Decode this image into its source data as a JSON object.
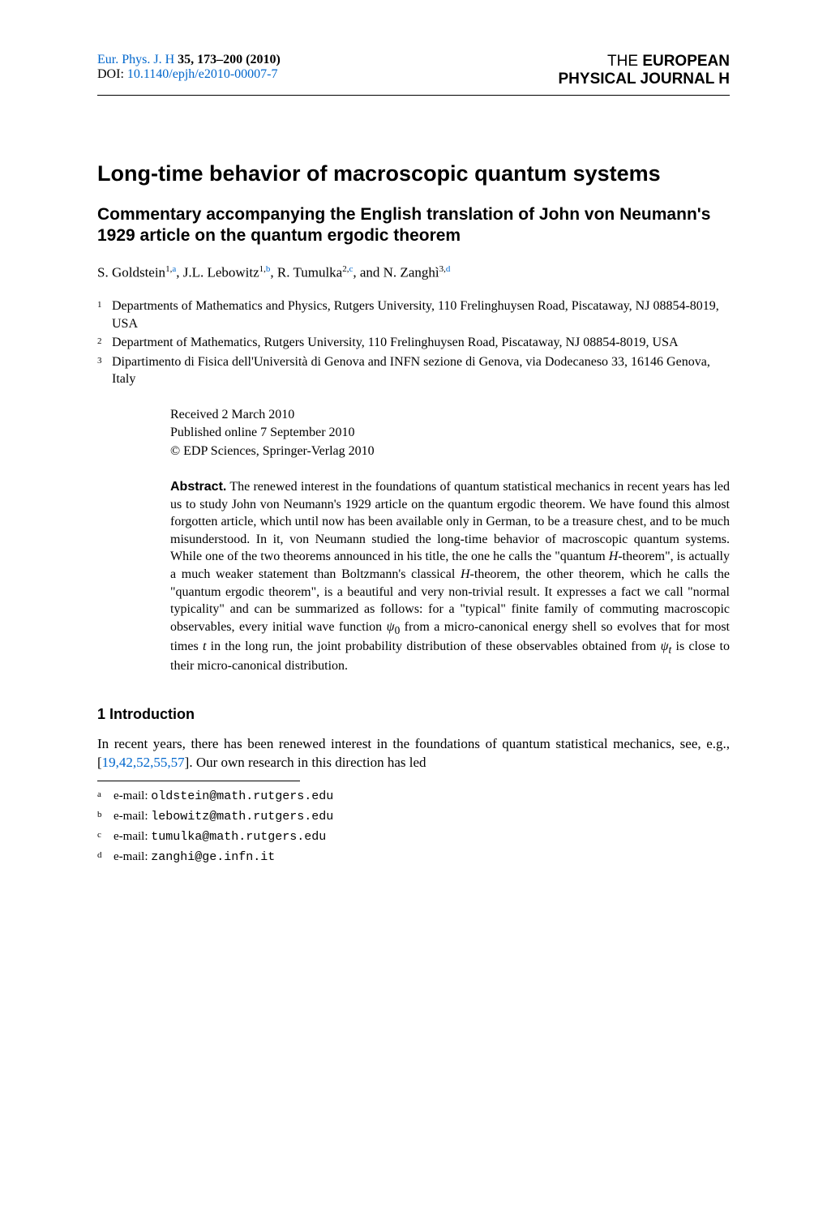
{
  "header": {
    "journal_link_text": "Eur. Phys. J. H",
    "volume_pages": "35, 173–200 (2010)",
    "doi_prefix": "DOI: ",
    "doi_link_text": "10.1140/epjh/e2010-00007-7",
    "journal_name_line1_plain": "THE ",
    "journal_name_line1_bold": "EUROPEAN",
    "journal_name_line2": "PHYSICAL JOURNAL H"
  },
  "title": "Long-time behavior of macroscopic quantum systems",
  "subtitle": "Commentary accompanying the English translation of John von Neumann's 1929 article on the quantum ergodic theorem",
  "authors": {
    "a1_name": "S. Goldstein",
    "a1_aff": "1",
    "a1_note": "a",
    "sep1": ", ",
    "a2_name": "J.L. Lebowitz",
    "a2_aff": "1",
    "a2_note": "b",
    "sep2": ", ",
    "a3_name": "R. Tumulka",
    "a3_aff": "2",
    "a3_note": "c",
    "sep3": ", and ",
    "a4_name": "N. Zanghì",
    "a4_aff": "3",
    "a4_note": "d"
  },
  "affiliations": [
    {
      "num": "1",
      "text": "Departments of Mathematics and Physics, Rutgers University, 110 Frelinghuysen Road, Piscataway, NJ 08854-8019, USA"
    },
    {
      "num": "2",
      "text": "Department of Mathematics, Rutgers University, 110 Frelinghuysen Road, Piscataway, NJ 08854-8019, USA"
    },
    {
      "num": "3",
      "text": "Dipartimento di Fisica dell'Università di Genova and INFN sezione di Genova, via Dodecaneso 33, 16146 Genova, Italy"
    }
  ],
  "received": {
    "line1": "Received 2 March 2010",
    "line2": "Published online 7 September 2010",
    "line3": "© EDP Sciences, Springer-Verlag 2010"
  },
  "abstract": {
    "label": "Abstract.",
    "text": " The renewed interest in the foundations of quantum statistical mechanics in recent years has led us to study John von Neumann's 1929 article on the quantum ergodic theorem. We have found this almost forgotten article, which until now has been available only in German, to be a treasure chest, and to be much misunderstood. In it, von Neumann studied the long-time behavior of macroscopic quantum systems. While one of the two theorems announced in his title, the one he calls the \"quantum H-theorem\", is actually a much weaker statement than Boltzmann's classical H-theorem, the other theorem, which he calls the \"quantum ergodic theorem\", is a beautiful and very non-trivial result. It expresses a fact we call \"normal typicality\" and can be summarized as follows: for a \"typical\" finite family of commuting macroscopic observables, every initial wave function ψ₀ from a micro-canonical energy shell so evolves that for most times t in the long run, the joint probability distribution of these observables obtained from ψₜ is close to their micro-canonical distribution."
  },
  "section1": {
    "heading": "1 Introduction",
    "para1_pre": "In recent years, there has been renewed interest in the foundations of quantum statistical mechanics, see, e.g., [",
    "para1_cite": "19,42,52,55,57",
    "para1_post": "]. Our own research in this direction has led"
  },
  "footnotes": [
    {
      "label": "a",
      "prefix": "e-mail: ",
      "email": "oldstein@math.rutgers.edu"
    },
    {
      "label": "b",
      "prefix": "e-mail: ",
      "email": "lebowitz@math.rutgers.edu"
    },
    {
      "label": "c",
      "prefix": "e-mail: ",
      "email": "tumulka@math.rutgers.edu"
    },
    {
      "label": "d",
      "prefix": "e-mail: ",
      "email": "zanghi@ge.infn.it"
    }
  ],
  "colors": {
    "link": "#0066cc",
    "text": "#000000",
    "background": "#ffffff"
  },
  "fonts": {
    "body": "Times New Roman",
    "headings": "Arial",
    "mono": "Courier New",
    "body_size_pt": 12,
    "title_size_pt": 20,
    "subtitle_size_pt": 16
  }
}
